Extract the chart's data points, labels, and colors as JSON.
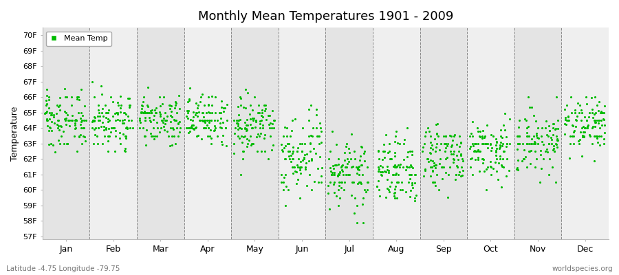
{
  "title": "Monthly Mean Temperatures 1901 - 2009",
  "ylabel": "Temperature",
  "xlabel_labels": [
    "Jan",
    "Feb",
    "Mar",
    "Apr",
    "May",
    "Jun",
    "Jul",
    "Aug",
    "Sep",
    "Oct",
    "Nov",
    "Dec"
  ],
  "ytick_labels": [
    "57F",
    "58F",
    "59F",
    "60F",
    "61F",
    "62F",
    "63F",
    "64F",
    "65F",
    "66F",
    "67F",
    "68F",
    "69F",
    "70F"
  ],
  "ytick_values": [
    57,
    58,
    59,
    60,
    61,
    62,
    63,
    64,
    65,
    66,
    67,
    68,
    69,
    70
  ],
  "ylim": [
    56.8,
    70.5
  ],
  "dot_color": "#00BB00",
  "bg_color_dark": "#E4E4E4",
  "bg_color_light": "#EFEFEF",
  "legend_label": "Mean Temp",
  "subtitle_left": "Latitude -4.75 Longitude -79.75",
  "subtitle_right": "worldspecies.org",
  "n_years": 109,
  "monthly_means": [
    64.5,
    64.5,
    64.5,
    64.5,
    64.1,
    62.1,
    61.2,
    61.4,
    62.1,
    62.5,
    63.2,
    64.3
  ],
  "monthly_stds": [
    0.9,
    0.85,
    0.85,
    0.8,
    1.0,
    1.2,
    1.2,
    1.1,
    1.0,
    1.0,
    1.0,
    0.9
  ],
  "random_seed": 7
}
